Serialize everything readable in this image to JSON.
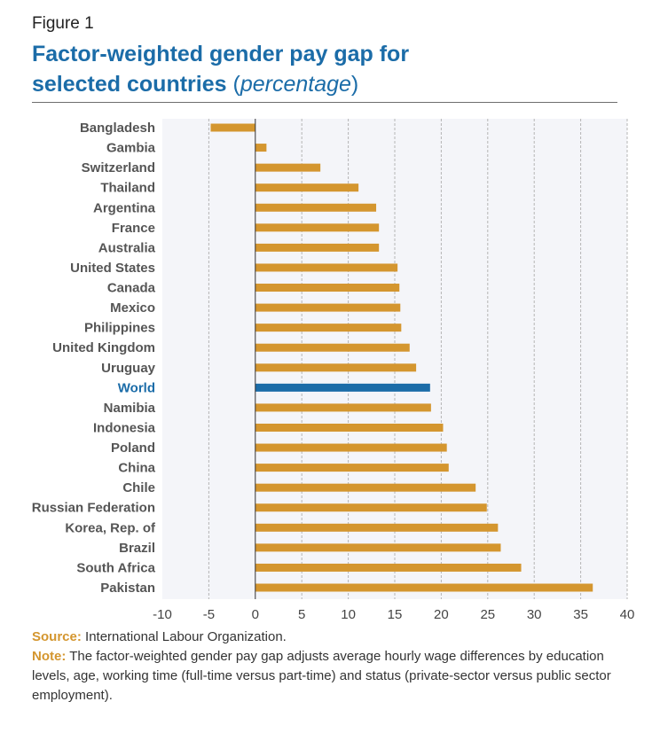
{
  "figure_label": "Figure 1",
  "title_line1": "Factor-weighted gender pay gap for",
  "title_line2": "selected countries",
  "title_unit": "percentage",
  "source_label": "Source:",
  "source_text": "International Labour Organization.",
  "note_label": "Note:",
  "note_text": "The factor-weighted gender pay gap adjusts average hourly wage differences by education levels, age, working time (full-time versus part-time) and status (private-sector versus public sector employment).",
  "colors": {
    "bar": "#d4962f",
    "highlight": "#1b6ca8",
    "plot_bg": "#f4f5f9",
    "label": "#555555"
  },
  "chart_data": {
    "type": "bar",
    "orientation": "horizontal",
    "categories": [
      "Bangladesh",
      "Gambia",
      "Switzerland",
      "Thailand",
      "Argentina",
      "France",
      "Australia",
      "United States",
      "Canada",
      "Mexico",
      "Philippines",
      "United Kingdom",
      "Uruguay",
      "World",
      "Namibia",
      "Indonesia",
      "Poland",
      "China",
      "Chile",
      "Russian Federation",
      "Korea, Rep. of",
      "Brazil",
      "South Africa",
      "Pakistan"
    ],
    "values": [
      -4.8,
      1.2,
      7.0,
      11.1,
      13.0,
      13.3,
      13.3,
      15.3,
      15.5,
      15.6,
      15.7,
      16.6,
      17.3,
      18.8,
      18.9,
      20.2,
      20.6,
      20.8,
      23.7,
      24.9,
      26.1,
      26.4,
      28.6,
      36.3
    ],
    "highlight": "World",
    "xlim": [
      -10,
      40
    ],
    "xticks": [
      -10,
      -5,
      0,
      5,
      10,
      15,
      20,
      25,
      30,
      35,
      40
    ],
    "grid": "vertical dashed"
  }
}
